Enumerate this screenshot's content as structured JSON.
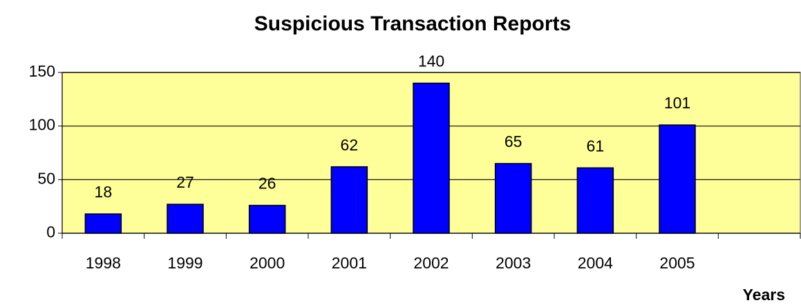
{
  "chart_data": {
    "type": "bar",
    "title": "Suspicious Transaction Reports",
    "x_label": "Years",
    "categories": [
      "1998",
      "1999",
      "2000",
      "2001",
      "2002",
      "2003",
      "2004",
      "2005",
      null
    ],
    "values": [
      18,
      27,
      26,
      62,
      140,
      65,
      61,
      101,
      null
    ],
    "color": "#0000ff",
    "ylim": [
      0,
      150
    ],
    "yticks": [
      0,
      50,
      100,
      150
    ],
    "grid": true
  }
}
